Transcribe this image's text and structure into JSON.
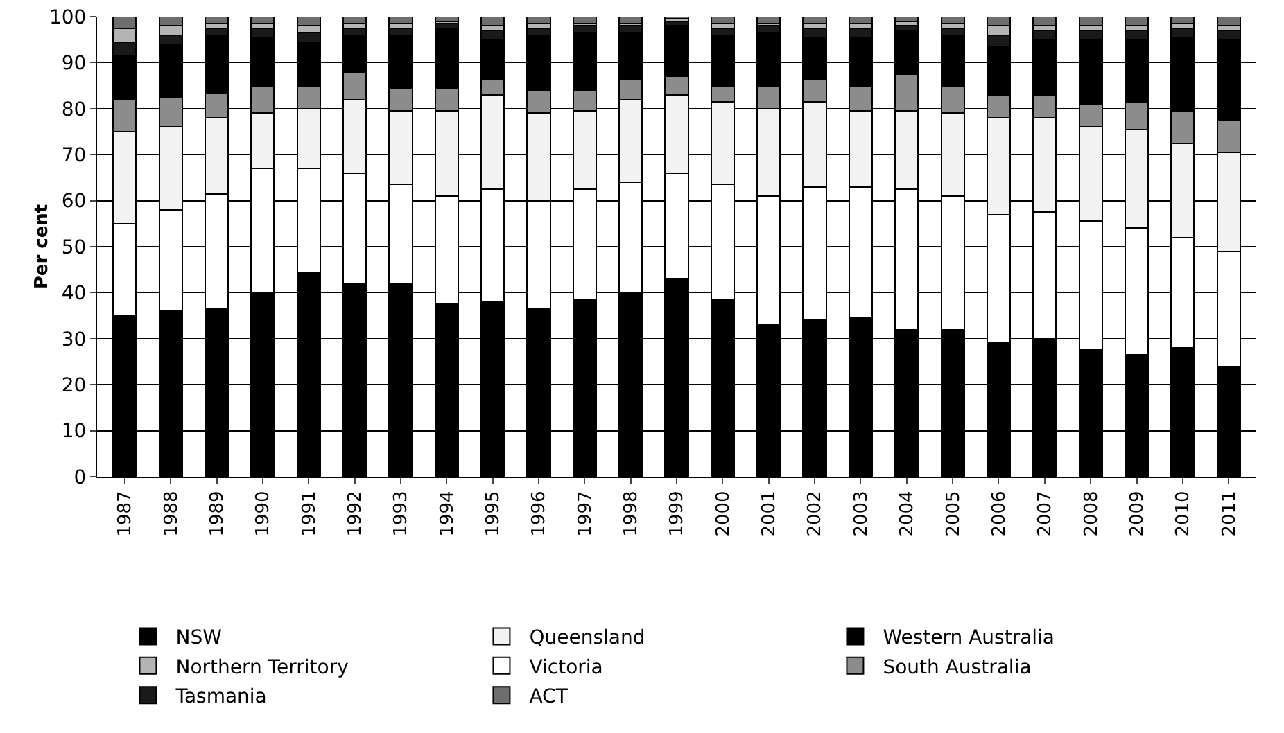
{
  "chart_data": {
    "type": "bar",
    "stacked": true,
    "ylabel": "Per cent",
    "categories": [
      "1987",
      "1988",
      "1989",
      "1990",
      "1991",
      "1992",
      "1993",
      "1994",
      "1995",
      "1996",
      "1997",
      "1998",
      "1999",
      "2000",
      "2001",
      "2002",
      "2003",
      "2004",
      "2005",
      "2006",
      "2007",
      "2008",
      "2009",
      "2010",
      "2011"
    ],
    "series": [
      {
        "name": "NSW",
        "color": "#000000",
        "values": [
          35,
          36,
          36.5,
          40,
          44.5,
          42,
          42,
          37.5,
          38,
          36.5,
          38.5,
          40,
          43,
          38.5,
          33,
          34,
          34.5,
          32,
          32,
          29,
          30,
          27.5,
          26.5,
          28,
          24
        ]
      },
      {
        "name": "Victoria",
        "color": "#ffffff",
        "values": [
          20,
          22,
          25,
          27,
          22.5,
          24,
          21.5,
          23.5,
          24.5,
          23.5,
          24,
          24,
          23,
          25,
          28,
          29,
          28.5,
          30.5,
          29,
          28,
          27.5,
          28,
          27.5,
          24,
          25
        ]
      },
      {
        "name": "Queensland",
        "color": "#f2f2f2",
        "values": [
          20,
          18,
          16.5,
          12,
          13,
          16,
          16,
          18.5,
          20.5,
          19,
          17,
          18,
          17,
          18,
          19,
          18.5,
          16.5,
          17,
          18,
          21,
          20.5,
          20.5,
          21.5,
          20.5,
          21.5
        ]
      },
      {
        "name": "South Australia",
        "color": "#8c8c8c",
        "values": [
          7,
          6.5,
          5.5,
          6,
          5,
          6,
          5,
          5,
          3.5,
          5,
          4.5,
          4.5,
          4,
          3.5,
          5,
          5,
          5.5,
          8,
          6,
          5,
          5,
          5,
          6,
          7,
          7
        ]
      },
      {
        "name": "Western Australia",
        "color": "#000000",
        "values": [
          9.5,
          11.5,
          12.5,
          10.5,
          9.5,
          8,
          11.5,
          13,
          8.5,
          12,
          12.5,
          10,
          11,
          11,
          11.5,
          9,
          10.5,
          9.5,
          11,
          10.5,
          12,
          14,
          13.5,
          16,
          17.5
        ]
      },
      {
        "name": "Tasmania",
        "color": "#1a1a1a",
        "values": [
          3,
          2,
          1.5,
          2,
          2,
          1.5,
          1.5,
          1,
          2,
          1.5,
          1.5,
          1.5,
          1,
          1.5,
          1.5,
          2,
          2,
          1,
          1.5,
          2.5,
          2,
          2,
          2,
          2,
          2
        ]
      },
      {
        "name": "Northern Territory",
        "color": "#b4b4b4",
        "values": [
          3,
          2,
          1,
          1,
          1.5,
          1,
          1,
          0.5,
          1,
          1,
          0.5,
          0.5,
          0.5,
          1,
          0.5,
          1,
          1,
          1,
          1,
          2,
          1,
          1,
          1,
          1,
          1
        ]
      },
      {
        "name": "ACT",
        "color": "#6e6e6e",
        "values": [
          2.5,
          2,
          1.5,
          1.5,
          2,
          1.5,
          1.5,
          1,
          2,
          1.5,
          1.5,
          1.5,
          0.5,
          1.5,
          1.5,
          1.5,
          1.5,
          1,
          1.5,
          2,
          2,
          2,
          2,
          1.5,
          2
        ]
      }
    ],
    "ylim": [
      0,
      100
    ],
    "yticks": [
      0,
      10,
      20,
      30,
      40,
      50,
      60,
      70,
      80,
      90,
      100
    ],
    "grid": "y",
    "legend": "bottom"
  }
}
